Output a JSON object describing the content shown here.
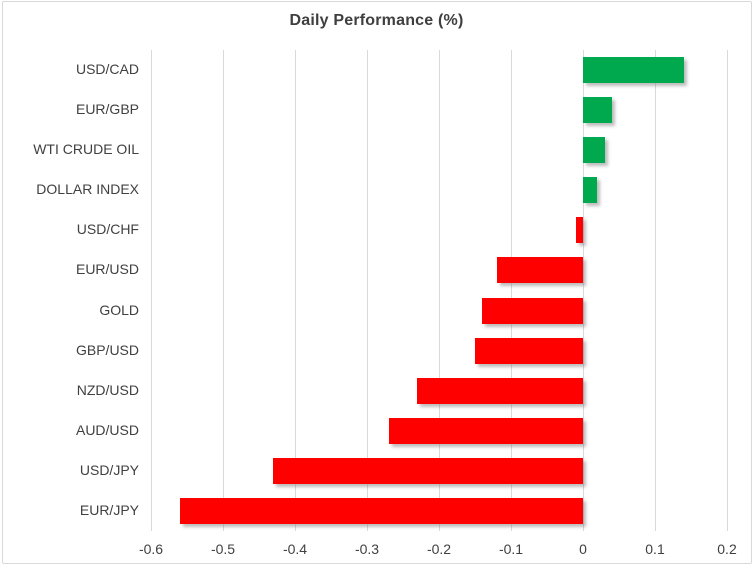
{
  "chart_data": {
    "type": "bar",
    "orientation": "horizontal",
    "title": "Daily Performance (%)",
    "categories": [
      "USD/CAD",
      "EUR/GBP",
      "WTI CRUDE OIL",
      "DOLLAR INDEX",
      "USD/CHF",
      "EUR/USD",
      "GOLD",
      "GBP/USD",
      "NZD/USD",
      "AUD/USD",
      "USD/JPY",
      "EUR/JPY"
    ],
    "values": [
      0.14,
      0.04,
      0.03,
      0.02,
      -0.01,
      -0.12,
      -0.14,
      -0.15,
      -0.23,
      -0.27,
      -0.43,
      -0.56
    ],
    "xlim": [
      -0.6,
      0.2
    ],
    "x_ticks": [
      -0.6,
      -0.5,
      -0.4,
      -0.3,
      -0.2,
      -0.1,
      0,
      0.1,
      0.2
    ],
    "x_tick_labels": [
      "-0.6",
      "-0.5",
      "-0.4",
      "-0.3",
      "-0.2",
      "-0.1",
      "0",
      "0.1",
      "0.2"
    ],
    "grid": true,
    "legend": "none",
    "colors": {
      "positive": "#00a84e",
      "negative": "#ff0000",
      "gridline": "#d9d9d9",
      "text": "#404040",
      "title_text": "#3f3f3f"
    }
  }
}
